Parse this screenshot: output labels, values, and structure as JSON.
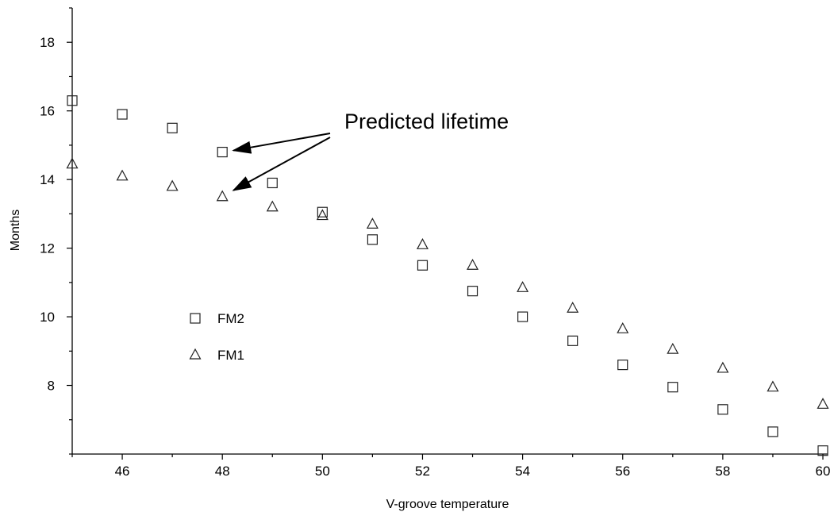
{
  "chart_data": {
    "type": "scatter",
    "title": "",
    "xlabel": "V-groove temperature",
    "ylabel": "Months",
    "xlim": [
      45,
      60
    ],
    "ylim": [
      6,
      19
    ],
    "x_ticks": [
      46,
      48,
      50,
      52,
      54,
      56,
      58,
      60
    ],
    "y_ticks": [
      8,
      10,
      12,
      14,
      16,
      18
    ],
    "grid": false,
    "legend_placement": "center-left",
    "series": [
      {
        "name": "FM2",
        "marker": "square",
        "x": [
          45,
          46,
          47,
          48,
          49,
          50,
          51,
          52,
          53,
          54,
          55,
          56,
          57,
          58,
          59,
          60
        ],
        "y": [
          16.3,
          15.9,
          15.5,
          14.8,
          13.9,
          13.05,
          12.25,
          11.5,
          10.75,
          10.0,
          9.3,
          8.6,
          7.95,
          7.3,
          6.65,
          6.1
        ]
      },
      {
        "name": "FM1",
        "marker": "triangle",
        "x": [
          45,
          46,
          47,
          48,
          49,
          50,
          51,
          52,
          53,
          54,
          55,
          56,
          57,
          58,
          59,
          60
        ],
        "y": [
          14.45,
          14.1,
          13.8,
          13.5,
          13.2,
          12.95,
          12.7,
          12.1,
          11.5,
          10.85,
          10.25,
          9.65,
          9.05,
          8.5,
          7.95,
          7.45
        ]
      }
    ],
    "annotations": [
      {
        "text": "Predicted lifetime",
        "arrow_targets": [
          [
            48,
            14.8
          ],
          [
            48,
            13.5
          ]
        ]
      }
    ]
  }
}
